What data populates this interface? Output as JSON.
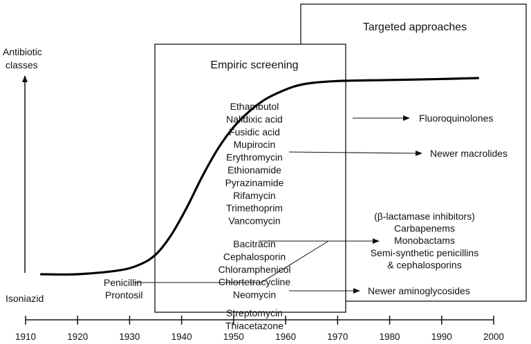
{
  "chart_data": {
    "type": "line",
    "title": "",
    "ylabel": [
      "Antibiotic",
      "classes"
    ],
    "xlabel": "",
    "xlim": [
      1910,
      2000
    ],
    "xticks": [
      1910,
      1920,
      1930,
      1940,
      1950,
      1960,
      1970,
      1980,
      1990,
      2000
    ],
    "curve": {
      "x": [
        1913,
        1920,
        1928,
        1932,
        1935,
        1938,
        1941,
        1944,
        1947,
        1950,
        1953,
        1956,
        1959,
        1962,
        1965,
        1970,
        1980,
        1990,
        1997
      ],
      "y": [
        0.0,
        0.0,
        0.02,
        0.05,
        0.1,
        0.2,
        0.34,
        0.5,
        0.64,
        0.75,
        0.83,
        0.89,
        0.93,
        0.96,
        0.975,
        0.985,
        0.99,
        0.995,
        1.0
      ]
    },
    "regions": [
      {
        "label": "Empiric screening"
      },
      {
        "label": "Targeted approaches"
      }
    ],
    "left_labels": [
      "Isoniazid",
      "Penicillin",
      "Prontosil"
    ],
    "empiric_drugs": [
      "Ethambutol",
      "Nalidixic acid",
      "Fusidic acid",
      "Mupirocin",
      "Erythromycin",
      "Ethionamide",
      "Pyrazinamide",
      "Rifamycin",
      "Trimethoprim",
      "Vancomycin",
      "Bacitracin",
      "Cephalosporin",
      "Chloramphenicol",
      "Chlortetracycline",
      "Neomycin",
      "Streptomycin",
      "Thiacetazone"
    ],
    "targeted_labels": {
      "fluoroquinolones": "Fluoroquinolones",
      "newer_macrolides": "Newer macrolides",
      "beta_lactam_group": [
        "(β-lactamase inhibitors)",
        "Carbapenems",
        "Monobactams",
        "Semi-synthetic penicillins",
        "& cephalosporins"
      ],
      "newer_aminoglycosides": "Newer aminoglycosides"
    }
  }
}
